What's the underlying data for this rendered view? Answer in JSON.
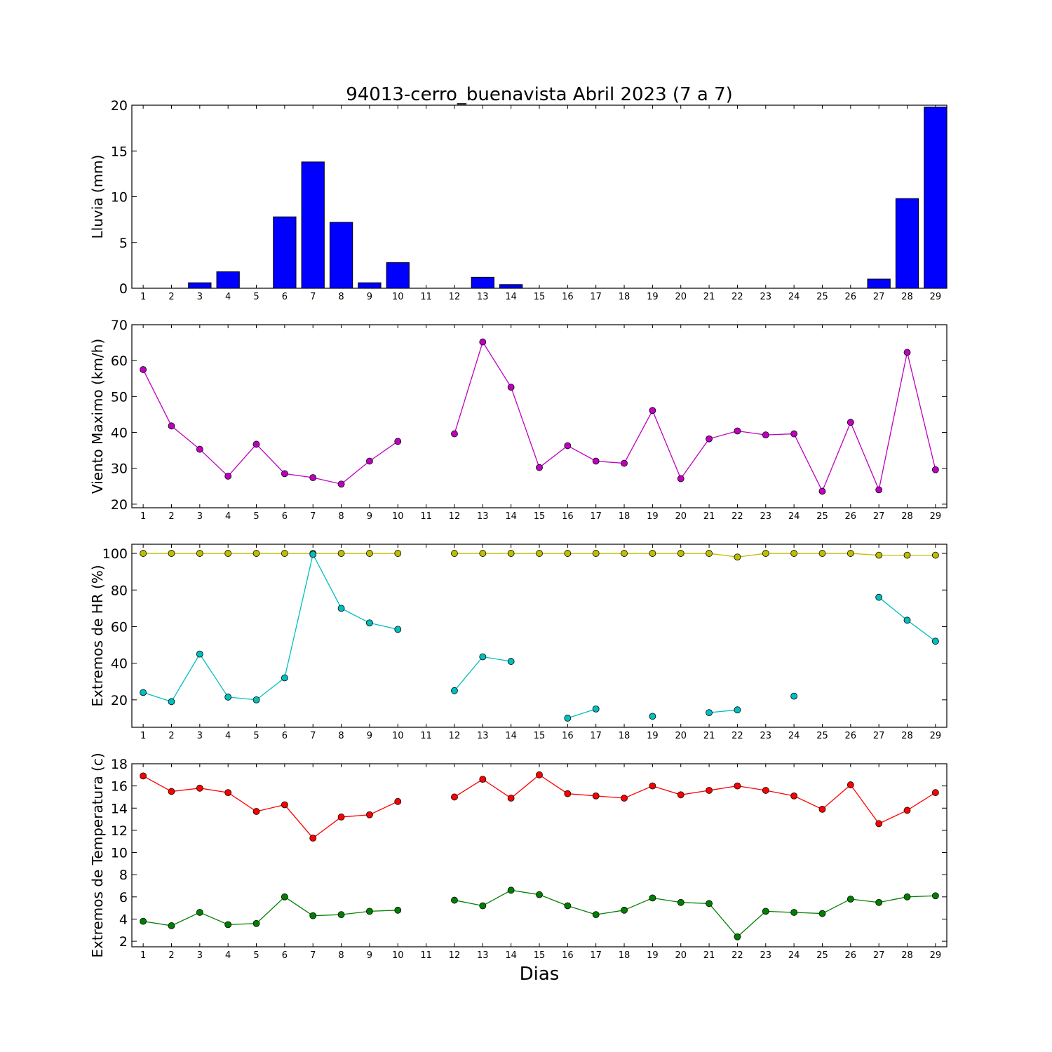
{
  "figure": {
    "title": "94013-cerro_buenavista Abril 2023  (7 a 7)",
    "xlabel": "Dias"
  },
  "colors": {
    "rain": "#0000ff",
    "wind": "#bf00bf",
    "hr_max": "#bfbf00",
    "hr_min": "#00bfbf",
    "t_max": "#ff0000",
    "t_min": "#008000"
  },
  "chart_data": [
    {
      "type": "bar",
      "ylabel": "Lluvia (mm)",
      "ylim": [
        0,
        20
      ],
      "yticks": [
        0,
        5,
        10,
        15,
        20
      ],
      "categories": [
        1,
        2,
        3,
        4,
        5,
        6,
        7,
        8,
        9,
        10,
        11,
        12,
        13,
        14,
        15,
        16,
        17,
        18,
        19,
        20,
        21,
        22,
        23,
        24,
        25,
        26,
        27,
        28,
        29
      ],
      "series": [
        {
          "color_key": "rain",
          "values": [
            0,
            0,
            0.6,
            1.8,
            0,
            7.8,
            13.8,
            7.2,
            0.6,
            2.8,
            0,
            0,
            1.2,
            0.4,
            0,
            0,
            0,
            0,
            0,
            0,
            0,
            0,
            0,
            0,
            0,
            0,
            1.0,
            9.8,
            19.8
          ]
        }
      ]
    },
    {
      "type": "line",
      "ylabel": "Viento Maximo (km/h)",
      "ylim": [
        19,
        70
      ],
      "yticks": [
        20,
        30,
        40,
        50,
        60,
        70
      ],
      "categories": [
        1,
        2,
        3,
        4,
        5,
        6,
        7,
        8,
        9,
        10,
        11,
        12,
        13,
        14,
        15,
        16,
        17,
        18,
        19,
        20,
        21,
        22,
        23,
        24,
        25,
        26,
        27,
        28,
        29
      ],
      "series": [
        {
          "color_key": "wind",
          "values": [
            57.5,
            41.8,
            35.3,
            27.8,
            36.7,
            28.5,
            27.4,
            25.6,
            32.0,
            37.5,
            null,
            39.6,
            65.2,
            52.6,
            30.2,
            36.3,
            32.0,
            31.4,
            46.1,
            27.1,
            38.2,
            40.4,
            39.3,
            39.6,
            23.6,
            42.8,
            24.0,
            62.3,
            29.6
          ]
        }
      ]
    },
    {
      "type": "line",
      "ylabel": "Extremos de HR (%)",
      "ylim": [
        5,
        105
      ],
      "yticks": [
        20,
        40,
        60,
        80,
        100
      ],
      "categories": [
        1,
        2,
        3,
        4,
        5,
        6,
        7,
        8,
        9,
        10,
        11,
        12,
        13,
        14,
        15,
        16,
        17,
        18,
        19,
        20,
        21,
        22,
        23,
        24,
        25,
        26,
        27,
        28,
        29
      ],
      "series": [
        {
          "color_key": "hr_max",
          "values": [
            100,
            100,
            100,
            100,
            100,
            100,
            100,
            100,
            100,
            100,
            null,
            100,
            100,
            100,
            100,
            100,
            100,
            100,
            100,
            100,
            100,
            98,
            100,
            100,
            100,
            100,
            99,
            99,
            99
          ]
        },
        {
          "color_key": "hr_min",
          "values": [
            24,
            19,
            45,
            21.5,
            20,
            32,
            99.5,
            70,
            62,
            58.5,
            null,
            25,
            43.5,
            41,
            null,
            10,
            15,
            null,
            11,
            null,
            13,
            14.5,
            null,
            22,
            null,
            null,
            76,
            63.5,
            52
          ]
        }
      ]
    },
    {
      "type": "line",
      "ylabel": "Extremos de Temperatura (c)",
      "ylim": [
        1.5,
        18
      ],
      "yticks": [
        2,
        4,
        6,
        8,
        10,
        12,
        14,
        16,
        18
      ],
      "categories": [
        1,
        2,
        3,
        4,
        5,
        6,
        7,
        8,
        9,
        10,
        11,
        12,
        13,
        14,
        15,
        16,
        17,
        18,
        19,
        20,
        21,
        22,
        23,
        24,
        25,
        26,
        27,
        28,
        29
      ],
      "series": [
        {
          "color_key": "t_max",
          "values": [
            16.9,
            15.5,
            15.8,
            15.4,
            13.7,
            14.3,
            11.3,
            13.2,
            13.4,
            14.6,
            null,
            15.0,
            16.6,
            14.9,
            17.0,
            15.3,
            15.1,
            14.9,
            16.0,
            15.2,
            15.6,
            16.0,
            15.6,
            15.1,
            13.9,
            16.1,
            12.6,
            13.8,
            15.4
          ]
        },
        {
          "color_key": "t_min",
          "values": [
            3.8,
            3.4,
            4.6,
            3.5,
            3.6,
            6.0,
            4.3,
            4.4,
            4.7,
            4.8,
            null,
            5.7,
            5.2,
            6.6,
            6.2,
            5.2,
            4.4,
            4.8,
            5.9,
            5.5,
            5.4,
            2.4,
            4.7,
            4.6,
            4.5,
            5.8,
            5.5,
            6.0,
            6.1
          ]
        }
      ]
    }
  ]
}
